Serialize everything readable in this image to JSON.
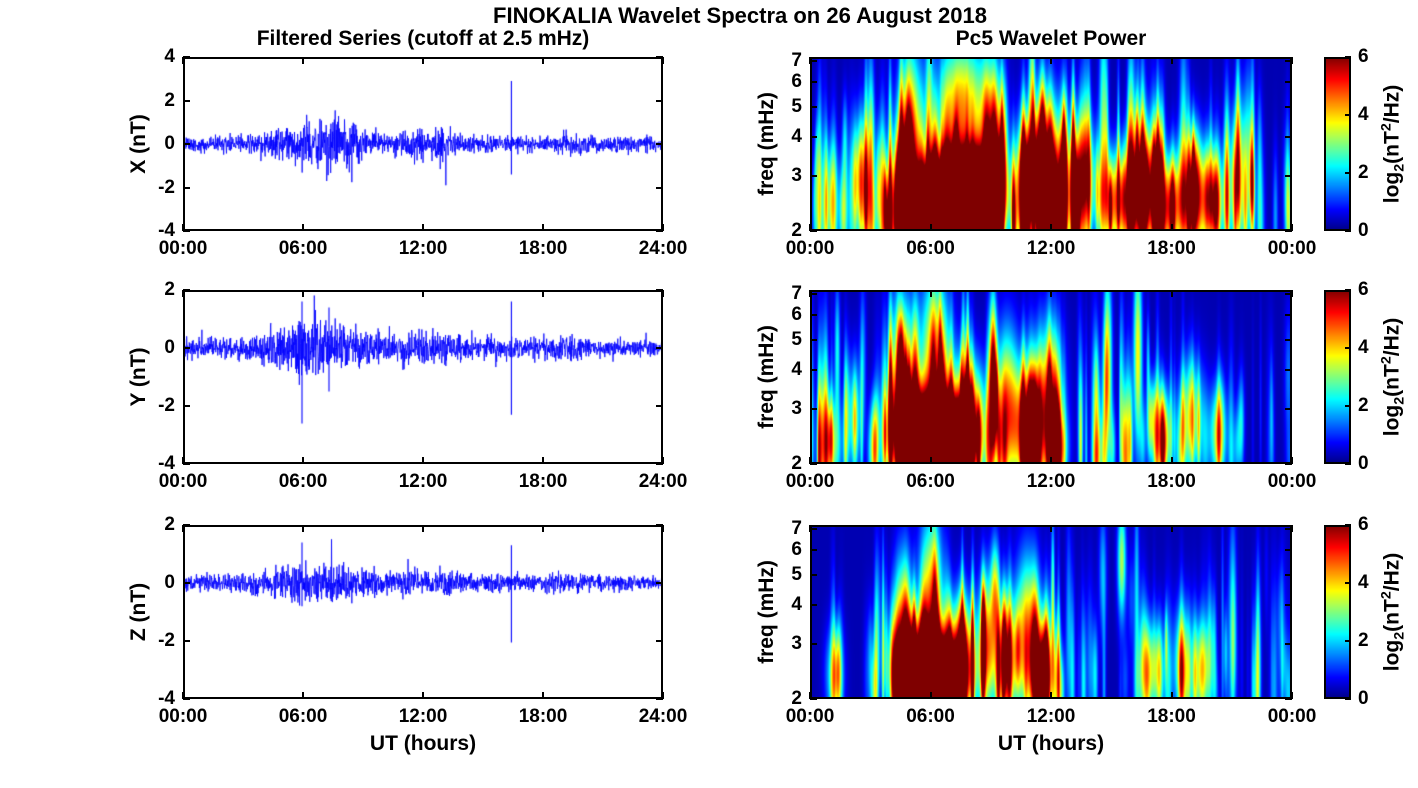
{
  "figure": {
    "title": "FINOKALIA Wavelet Spectra on 26 August 2018",
    "background": "#ffffff",
    "axis_color": "#000000"
  },
  "chart_data": [
    {
      "id": "x-filtered-series",
      "type": "line",
      "title": "Filtered Series (cutoff at 2.5 mHz)",
      "ylabel": "X (nT)",
      "ylim": [
        -4,
        4
      ],
      "yticks": [
        4,
        2,
        0,
        -2,
        -4
      ],
      "xlim_hours": [
        0,
        24
      ],
      "xtick_labels": [
        "00:00",
        "06:00",
        "12:00",
        "18:00",
        "24:00"
      ],
      "line_color": "#0000ff",
      "seed": 11,
      "noise_envelope": [
        [
          0,
          0.3
        ],
        [
          1,
          0.35
        ],
        [
          2,
          0.35
        ],
        [
          3,
          0.35
        ],
        [
          4,
          0.5
        ],
        [
          5,
          0.75
        ],
        [
          5.5,
          0.9
        ],
        [
          6,
          0.95
        ],
        [
          6.5,
          1.05
        ],
        [
          7,
          1.15
        ],
        [
          7.5,
          1.25
        ],
        [
          8,
          1.2
        ],
        [
          8.5,
          1.0
        ],
        [
          9,
          0.7
        ],
        [
          9.5,
          0.5
        ],
        [
          10,
          0.45
        ],
        [
          10.5,
          0.5
        ],
        [
          11,
          0.6
        ],
        [
          11.5,
          0.85
        ],
        [
          12,
          0.7
        ],
        [
          12.5,
          0.6
        ],
        [
          13,
          0.8
        ],
        [
          13.5,
          0.6
        ],
        [
          14,
          0.45
        ],
        [
          15,
          0.4
        ],
        [
          16,
          0.35
        ],
        [
          16.8,
          0.4
        ],
        [
          17.5,
          0.35
        ],
        [
          18.5,
          0.35
        ],
        [
          19,
          0.5
        ],
        [
          19.5,
          0.55
        ],
        [
          20,
          0.45
        ],
        [
          21,
          0.35
        ],
        [
          22,
          0.35
        ],
        [
          23,
          0.35
        ],
        [
          24,
          0.3
        ]
      ],
      "spikes": [
        [
          16.42,
          2.9,
          -1.4
        ]
      ]
    },
    {
      "id": "y-filtered-series",
      "type": "line",
      "ylabel": "Y (nT)",
      "ylim": [
        -4,
        2
      ],
      "yticks": [
        2,
        0,
        -2,
        -4
      ],
      "xlim_hours": [
        0,
        24
      ],
      "xtick_labels": [
        "00:00",
        "06:00",
        "12:00",
        "18:00",
        "24:00"
      ],
      "line_color": "#0000ff",
      "seed": 23,
      "noise_envelope": [
        [
          0,
          0.3
        ],
        [
          2,
          0.35
        ],
        [
          3,
          0.4
        ],
        [
          4,
          0.55
        ],
        [
          4.5,
          0.7
        ],
        [
          5,
          0.8
        ],
        [
          5.5,
          0.85
        ],
        [
          6,
          0.9
        ],
        [
          6.5,
          0.85
        ],
        [
          7,
          0.8
        ],
        [
          7.5,
          0.85
        ],
        [
          8,
          0.8
        ],
        [
          8.5,
          0.7
        ],
        [
          9,
          0.6
        ],
        [
          9.5,
          0.55
        ],
        [
          10,
          0.5
        ],
        [
          10.5,
          0.55
        ],
        [
          11,
          0.6
        ],
        [
          11.5,
          0.6
        ],
        [
          12,
          0.55
        ],
        [
          12.5,
          0.5
        ],
        [
          13,
          0.55
        ],
        [
          14,
          0.45
        ],
        [
          15,
          0.4
        ],
        [
          16,
          0.35
        ],
        [
          17,
          0.35
        ],
        [
          18,
          0.35
        ],
        [
          19,
          0.4
        ],
        [
          20,
          0.35
        ],
        [
          21,
          0.3
        ],
        [
          22,
          0.3
        ],
        [
          23,
          0.3
        ],
        [
          24,
          0.3
        ]
      ],
      "spikes": [
        [
          5.95,
          1.6,
          -2.6
        ],
        [
          7.3,
          1.4,
          -1.5
        ],
        [
          16.42,
          1.6,
          -2.3
        ]
      ]
    },
    {
      "id": "z-filtered-series",
      "type": "line",
      "ylabel": "Z (nT)",
      "xlabel": "UT (hours)",
      "ylim": [
        -4,
        2
      ],
      "yticks": [
        2,
        0,
        -2,
        -4
      ],
      "xlim_hours": [
        0,
        24
      ],
      "xtick_labels": [
        "00:00",
        "06:00",
        "12:00",
        "18:00",
        "24:00"
      ],
      "line_color": "#0000ff",
      "seed": 37,
      "noise_envelope": [
        [
          0,
          0.25
        ],
        [
          2,
          0.3
        ],
        [
          3,
          0.35
        ],
        [
          4,
          0.45
        ],
        [
          5,
          0.55
        ],
        [
          5.5,
          0.6
        ],
        [
          6,
          0.65
        ],
        [
          6.5,
          0.6
        ],
        [
          7,
          0.6
        ],
        [
          7.5,
          0.65
        ],
        [
          8,
          0.6
        ],
        [
          8.5,
          0.55
        ],
        [
          9,
          0.55
        ],
        [
          9.5,
          0.5
        ],
        [
          10,
          0.5
        ],
        [
          10.5,
          0.45
        ],
        [
          11,
          0.45
        ],
        [
          11.5,
          0.5
        ],
        [
          12,
          0.45
        ],
        [
          13,
          0.4
        ],
        [
          14,
          0.35
        ],
        [
          15,
          0.3
        ],
        [
          16,
          0.3
        ],
        [
          17,
          0.3
        ],
        [
          18,
          0.3
        ],
        [
          19,
          0.35
        ],
        [
          20,
          0.3
        ],
        [
          21,
          0.25
        ],
        [
          22,
          0.25
        ],
        [
          23,
          0.25
        ],
        [
          24,
          0.25
        ]
      ],
      "spikes": [
        [
          5.95,
          1.4,
          -0.8
        ],
        [
          16.42,
          1.3,
          -2.05
        ]
      ]
    },
    {
      "id": "x-wavelet-power",
      "type": "heatmap",
      "title": "Pc5 Wavelet Power",
      "ylabel": "freq (mHz)",
      "yscale": "log",
      "ylim_mhz": [
        2,
        7.2
      ],
      "yticks": [
        7,
        6,
        5,
        4,
        3,
        2
      ],
      "xlim_hours": [
        0,
        24
      ],
      "xtick_labels": [
        "00:00",
        "06:00",
        "12:00",
        "18:00",
        "00:00"
      ],
      "clim": [
        0,
        6
      ],
      "base_level": 0.3,
      "colorbar": {
        "range": [
          0,
          6
        ],
        "ticks": [
          6,
          4,
          2,
          0
        ],
        "label_parts": {
          "pre": "log",
          "sub": "2",
          "mid": "(nT",
          "sup": "2",
          "post": "/Hz)"
        }
      },
      "hotspots": [
        [
          7.0,
          2.4,
          1.3,
          0.25,
          9
        ],
        [
          6.0,
          2.2,
          0.8,
          0.18,
          7
        ],
        [
          8.2,
          2.6,
          0.8,
          0.22,
          7
        ],
        [
          5.0,
          3.5,
          0.4,
          0.5,
          5
        ],
        [
          4.5,
          2.5,
          0.3,
          0.3,
          4
        ],
        [
          7.5,
          5.0,
          0.8,
          0.35,
          4
        ],
        [
          9.0,
          4.0,
          0.4,
          0.4,
          3.5
        ],
        [
          10.8,
          2.8,
          0.5,
          0.3,
          4.5
        ],
        [
          11.8,
          3.2,
          0.6,
          0.35,
          5
        ],
        [
          12.3,
          2.3,
          0.4,
          0.25,
          4.5
        ],
        [
          13.5,
          3.0,
          0.5,
          0.3,
          3.5
        ],
        [
          15.3,
          2.5,
          0.6,
          0.25,
          4.5
        ],
        [
          16.5,
          2.8,
          0.5,
          0.3,
          4
        ],
        [
          17.8,
          2.4,
          0.5,
          0.25,
          4.5
        ],
        [
          19.0,
          2.6,
          0.5,
          0.3,
          4
        ],
        [
          20.0,
          2.5,
          0.4,
          0.25,
          4
        ],
        [
          2.5,
          3.0,
          0.3,
          0.3,
          3
        ],
        [
          1.0,
          2.5,
          0.3,
          0.3,
          2.5
        ],
        [
          21.5,
          3.0,
          0.3,
          0.4,
          3
        ]
      ],
      "activity_envelope": [
        [
          0,
          0.55
        ],
        [
          2,
          0.6
        ],
        [
          3,
          0.6
        ],
        [
          4,
          0.85
        ],
        [
          5,
          1.0
        ],
        [
          9,
          1.0
        ],
        [
          10,
          0.85
        ],
        [
          13,
          0.9
        ],
        [
          14,
          0.65
        ],
        [
          15,
          0.85
        ],
        [
          18,
          0.85
        ],
        [
          20,
          0.75
        ],
        [
          21,
          0.55
        ],
        [
          23,
          0.55
        ],
        [
          24,
          0.45
        ]
      ],
      "streaks": {
        "count": 170,
        "seed": 3
      }
    },
    {
      "id": "y-wavelet-power",
      "type": "heatmap",
      "ylabel": "freq (mHz)",
      "yscale": "log",
      "ylim_mhz": [
        2,
        7.2
      ],
      "yticks": [
        7,
        6,
        5,
        4,
        3,
        2
      ],
      "xlim_hours": [
        0,
        24
      ],
      "xtick_labels": [
        "00:00",
        "06:00",
        "12:00",
        "18:00",
        "00:00"
      ],
      "clim": [
        0,
        6
      ],
      "base_level": 0.3,
      "colorbar": {
        "range": [
          0,
          6
        ],
        "ticks": [
          6,
          4,
          2,
          0
        ],
        "label_parts": {
          "pre": "log",
          "sub": "2",
          "mid": "(nT",
          "sup": "2",
          "post": "/Hz)"
        }
      },
      "hotspots": [
        [
          5.5,
          2.5,
          1.0,
          0.25,
          7
        ],
        [
          6.8,
          2.3,
          0.9,
          0.2,
          8
        ],
        [
          7.8,
          2.8,
          0.6,
          0.3,
          5
        ],
        [
          4.5,
          3.5,
          0.4,
          0.45,
          4.5
        ],
        [
          6.2,
          4.5,
          0.5,
          0.4,
          4
        ],
        [
          9.8,
          3.0,
          0.4,
          0.4,
          4
        ],
        [
          10.8,
          2.6,
          0.5,
          0.3,
          4.5
        ],
        [
          11.8,
          3.0,
          0.5,
          0.4,
          4.5
        ],
        [
          12.3,
          2.2,
          0.3,
          0.2,
          4
        ],
        [
          14.8,
          4.0,
          0.15,
          0.5,
          3.5
        ],
        [
          16.3,
          4.5,
          0.15,
          0.5,
          3.5
        ],
        [
          17.5,
          2.5,
          0.4,
          0.25,
          3
        ],
        [
          19.0,
          2.8,
          0.4,
          0.3,
          3
        ],
        [
          20.3,
          2.5,
          0.3,
          0.25,
          3
        ],
        [
          1.0,
          2.3,
          0.4,
          0.25,
          3
        ],
        [
          2.2,
          2.8,
          0.2,
          0.3,
          2.5
        ]
      ],
      "activity_envelope": [
        [
          0,
          0.5
        ],
        [
          3,
          0.6
        ],
        [
          4,
          0.9
        ],
        [
          5,
          1.0
        ],
        [
          9,
          0.9
        ],
        [
          10,
          0.8
        ],
        [
          12,
          0.8
        ],
        [
          13,
          0.6
        ],
        [
          14,
          0.5
        ],
        [
          16,
          0.5
        ],
        [
          18,
          0.45
        ],
        [
          20,
          0.45
        ],
        [
          22,
          0.35
        ],
        [
          24,
          0.3
        ]
      ],
      "streaks": {
        "count": 140,
        "seed": 5
      }
    },
    {
      "id": "z-wavelet-power",
      "type": "heatmap",
      "ylabel": "freq (mHz)",
      "xlabel": "UT (hours)",
      "yscale": "log",
      "ylim_mhz": [
        2,
        7.2
      ],
      "yticks": [
        7,
        6,
        5,
        4,
        3,
        2
      ],
      "xlim_hours": [
        0,
        24
      ],
      "xtick_labels": [
        "00:00",
        "06:00",
        "12:00",
        "18:00",
        "00:00"
      ],
      "clim": [
        0,
        6
      ],
      "base_level": 0.3,
      "colorbar": {
        "range": [
          0,
          6
        ],
        "ticks": [
          6,
          4,
          2,
          0
        ],
        "label_parts": {
          "pre": "log",
          "sub": "2",
          "mid": "(nT",
          "sup": "2",
          "post": "/Hz)"
        }
      },
      "hotspots": [
        [
          5.3,
          2.5,
          0.8,
          0.25,
          6
        ],
        [
          6.5,
          2.3,
          0.8,
          0.2,
          7
        ],
        [
          7.5,
          2.7,
          0.5,
          0.3,
          5
        ],
        [
          4.6,
          3.2,
          0.3,
          0.4,
          4
        ],
        [
          6.0,
          4.0,
          0.4,
          0.45,
          4
        ],
        [
          8.8,
          3.0,
          0.3,
          0.35,
          4
        ],
        [
          9.8,
          2.7,
          0.4,
          0.3,
          4
        ],
        [
          10.8,
          3.2,
          0.4,
          0.4,
          4
        ],
        [
          11.5,
          2.4,
          0.4,
          0.25,
          4
        ],
        [
          15.5,
          5.5,
          0.15,
          0.3,
          3
        ],
        [
          17.0,
          2.5,
          0.4,
          0.25,
          3
        ],
        [
          18.5,
          2.6,
          0.3,
          0.3,
          2.8
        ],
        [
          19.5,
          2.5,
          0.3,
          0.25,
          3
        ],
        [
          1.2,
          2.4,
          0.3,
          0.25,
          2.5
        ]
      ],
      "activity_envelope": [
        [
          0,
          0.45
        ],
        [
          3,
          0.5
        ],
        [
          4,
          0.8
        ],
        [
          5,
          1.0
        ],
        [
          8,
          0.95
        ],
        [
          9,
          0.8
        ],
        [
          12,
          0.7
        ],
        [
          13,
          0.5
        ],
        [
          14,
          0.45
        ],
        [
          17,
          0.45
        ],
        [
          20,
          0.4
        ],
        [
          22,
          0.3
        ],
        [
          24,
          0.3
        ]
      ],
      "streaks": {
        "count": 130,
        "seed": 9
      }
    }
  ]
}
